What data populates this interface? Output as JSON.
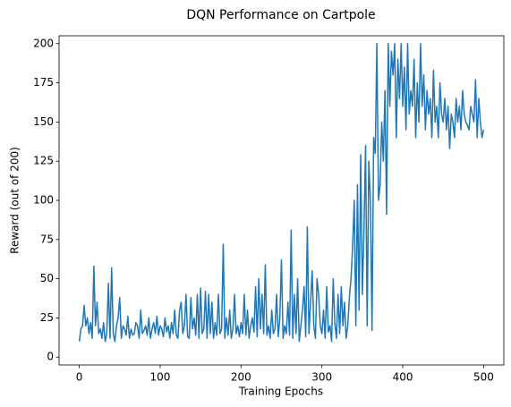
{
  "chart_data": {
    "type": "line",
    "title": "DQN Performance on Cartpole",
    "x_label": "Training Epochs",
    "y_label": "Reward (out of 200)",
    "color": "#1f77b4",
    "x": [
      0,
      2,
      4,
      6,
      8,
      10,
      12,
      14,
      16,
      18,
      20,
      22,
      24,
      26,
      28,
      30,
      32,
      34,
      36,
      38,
      40,
      42,
      44,
      46,
      48,
      50,
      52,
      54,
      56,
      58,
      60,
      62,
      64,
      66,
      68,
      70,
      72,
      74,
      76,
      78,
      80,
      82,
      84,
      86,
      88,
      90,
      92,
      94,
      96,
      98,
      100,
      102,
      104,
      106,
      108,
      110,
      112,
      114,
      116,
      118,
      120,
      122,
      124,
      126,
      128,
      130,
      132,
      134,
      136,
      138,
      140,
      142,
      144,
      146,
      148,
      150,
      152,
      154,
      156,
      158,
      160,
      162,
      164,
      166,
      168,
      170,
      172,
      174,
      176,
      178,
      180,
      182,
      184,
      186,
      188,
      190,
      192,
      194,
      196,
      198,
      200,
      202,
      204,
      206,
      208,
      210,
      212,
      214,
      216,
      218,
      220,
      222,
      224,
      226,
      228,
      230,
      232,
      234,
      236,
      238,
      240,
      242,
      244,
      246,
      248,
      250,
      252,
      254,
      256,
      258,
      260,
      262,
      264,
      266,
      268,
      270,
      272,
      274,
      276,
      278,
      280,
      282,
      284,
      286,
      288,
      290,
      292,
      294,
      296,
      298,
      300,
      302,
      304,
      306,
      308,
      310,
      312,
      314,
      316,
      318,
      320,
      322,
      324,
      326,
      328,
      330,
      332,
      334,
      336,
      338,
      340,
      342,
      344,
      346,
      348,
      350,
      352,
      354,
      356,
      358,
      360,
      362,
      364,
      366,
      368,
      370,
      372,
      374,
      376,
      378,
      380,
      382,
      384,
      386,
      388,
      390,
      392,
      394,
      396,
      398,
      400,
      402,
      404,
      406,
      408,
      410,
      412,
      414,
      416,
      418,
      420,
      422,
      424,
      426,
      428,
      430,
      432,
      434,
      436,
      438,
      440,
      442,
      444,
      446,
      448,
      450,
      452,
      454,
      456,
      458,
      460,
      462,
      464,
      466,
      468,
      470,
      472,
      474,
      476,
      478,
      480,
      482,
      484,
      486,
      488,
      490,
      492,
      494,
      496,
      498,
      500
    ],
    "values": [
      10,
      18,
      20,
      33,
      20,
      25,
      15,
      22,
      12,
      58,
      20,
      35,
      15,
      18,
      12,
      22,
      10,
      15,
      47,
      12,
      57,
      15,
      10,
      20,
      25,
      38,
      12,
      20,
      18,
      14,
      26,
      12,
      18,
      14,
      15,
      22,
      20,
      12,
      30,
      15,
      17,
      20,
      14,
      25,
      12,
      18,
      22,
      15,
      26,
      14,
      20,
      18,
      13,
      25,
      16,
      20,
      12,
      22,
      15,
      30,
      14,
      12,
      30,
      35,
      15,
      20,
      40,
      13,
      12,
      38,
      18,
      25,
      14,
      40,
      12,
      44,
      15,
      18,
      42,
      12,
      40,
      15,
      35,
      12,
      22,
      14,
      40,
      15,
      18,
      72,
      12,
      25,
      14,
      30,
      12,
      18,
      40,
      15,
      20,
      13,
      22,
      15,
      40,
      14,
      30,
      12,
      20,
      25,
      16,
      45,
      13,
      50,
      18,
      40,
      15,
      59,
      14,
      20,
      12,
      30,
      15,
      18,
      40,
      13,
      25,
      62,
      12,
      20,
      15,
      35,
      14,
      81,
      12,
      40,
      15,
      50,
      10,
      20,
      30,
      45,
      13,
      83,
      15,
      35,
      55,
      20,
      12,
      50,
      40,
      20,
      15,
      30,
      12,
      45,
      16,
      20,
      10,
      50,
      22,
      12,
      40,
      15,
      45,
      20,
      35,
      12,
      20,
      38,
      50,
      70,
      100,
      20,
      110,
      30,
      129,
      40,
      80,
      135,
      20,
      125,
      100,
      17,
      140,
      130,
      200,
      100,
      110,
      150,
      125,
      170,
      91,
      200,
      160,
      195,
      180,
      200,
      140,
      190,
      165,
      200,
      160,
      185,
      145,
      200,
      155,
      170,
      160,
      190,
      140,
      175,
      150,
      200,
      160,
      180,
      145,
      170,
      155,
      165,
      140,
      183,
      150,
      160,
      140,
      175,
      155,
      150,
      165,
      145,
      160,
      133,
      155,
      150,
      140,
      165,
      150,
      160,
      145,
      170,
      155,
      150,
      148,
      145,
      160,
      155,
      150,
      177,
      140,
      165,
      150,
      140,
      145
    ],
    "xlim": [
      -25,
      525
    ],
    "xticks": [
      0,
      100,
      200,
      300,
      400,
      500
    ],
    "ylim": [
      -5,
      205
    ],
    "yticks": [
      0,
      25,
      50,
      75,
      100,
      125,
      150,
      175,
      200
    ]
  }
}
